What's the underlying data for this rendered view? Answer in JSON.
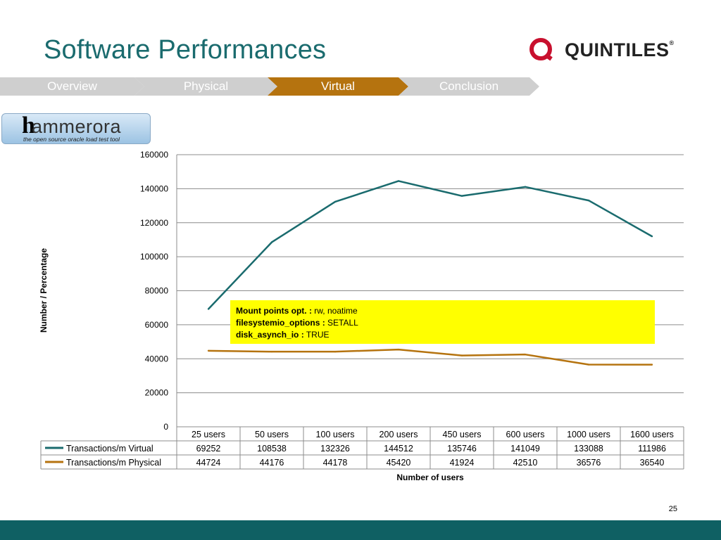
{
  "slide": {
    "title": "Software Performances",
    "logo_text": "QUINTILES",
    "logo_mark": "®",
    "page_number": "25"
  },
  "nav": {
    "tabs": [
      {
        "label": "Overview",
        "active": false
      },
      {
        "label": "Physical",
        "active": false
      },
      {
        "label": "Virtual",
        "active": true
      },
      {
        "label": "Conclusion",
        "active": false
      }
    ]
  },
  "hammerora": {
    "initial": "h",
    "word": "ammerora",
    "tagline": "the open source oracle load test tool"
  },
  "annotation": {
    "line1_key": "Mount points opt. :",
    "line1_val": " rw, noatime",
    "line2_key": "filesystemio_options :",
    "line2_val": " SETALL",
    "line3_key": "disk_asynch_io :",
    "line3_val": " TRUE"
  },
  "colors": {
    "virtual": "#1a6b6e",
    "physical": "#b5730f",
    "title": "#1a6b6e",
    "footer": "#0f6063",
    "highlight": "#ffff00"
  },
  "chart_data": {
    "type": "line",
    "title": "",
    "xlabel": "Number of users",
    "ylabel": "Number / Percentage",
    "ylim": [
      0,
      160000
    ],
    "yticks": [
      "0",
      "20000",
      "40000",
      "60000",
      "80000",
      "100000",
      "120000",
      "140000",
      "160000"
    ],
    "grid": true,
    "legend": "data-table-left",
    "categories": [
      "25 users",
      "50 users",
      "100 users",
      "200 users",
      "450 users",
      "600 users",
      "1000 users",
      "1600 users"
    ],
    "series": [
      {
        "name": "Transactions/m Virtual",
        "color": "#1a6b6e",
        "values": [
          69252,
          108538,
          132326,
          144512,
          135746,
          141049,
          133088,
          111986
        ]
      },
      {
        "name": "Transactions/m Physical",
        "color": "#b5730f",
        "values": [
          44724,
          44176,
          44178,
          45420,
          41924,
          42510,
          36576,
          36540
        ]
      }
    ]
  }
}
